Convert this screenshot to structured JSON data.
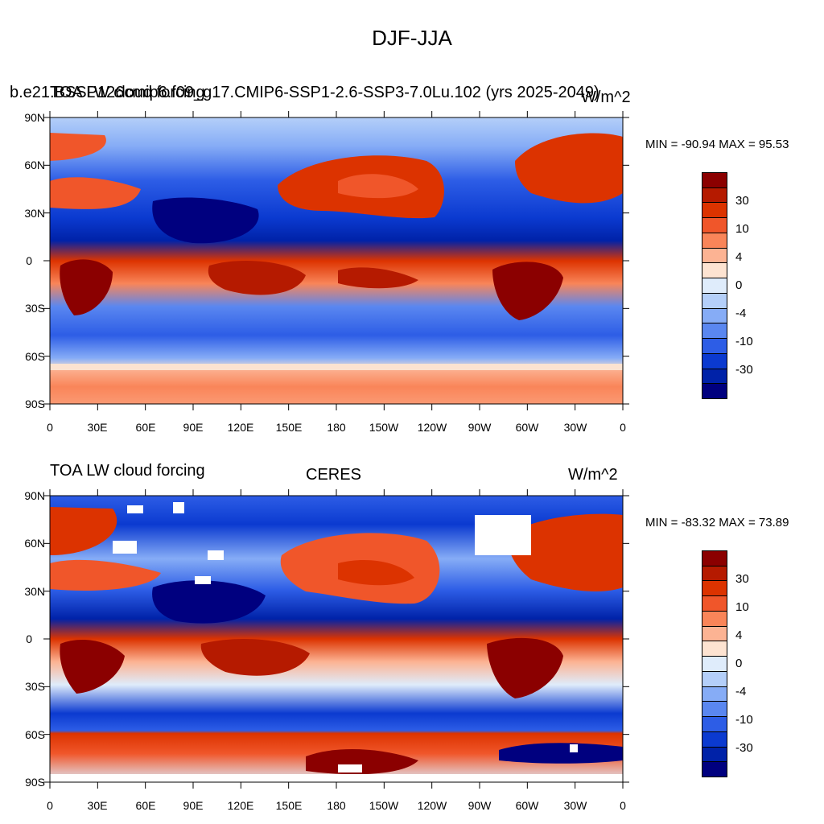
{
  "figure": {
    "title": "DJF-JJA"
  },
  "panels": [
    {
      "left_title": "b.e21.BSSP126cmip6.f09_g17.CMIP6-SSP1-2.6-SSP3-7.0Lu.102 (yrs 2025-2049)",
      "overlay_title": "TOA LW cloud forcing",
      "units": "W/m^2",
      "stats": "MIN = -90.94 MAX =  95.53"
    },
    {
      "left_title": "TOA LW cloud forcing",
      "center_title": "CERES",
      "units": "W/m^2",
      "stats": "MIN = -83.32 MAX =  73.89"
    }
  ],
  "axes": {
    "lat_labels": [
      "90N",
      "60N",
      "30N",
      "0",
      "30S",
      "60S",
      "90S"
    ],
    "lon_labels": [
      "0",
      "30E",
      "60E",
      "90E",
      "120E",
      "150E",
      "180",
      "150W",
      "120W",
      "90W",
      "60W",
      "30W",
      "0"
    ]
  },
  "colorbar": {
    "labels": [
      "30",
      "10",
      "4",
      "0",
      "-4",
      "-10",
      "-30"
    ],
    "colors": [
      "#8b0000",
      "#b51a00",
      "#dc3300",
      "#f0562a",
      "#f98559",
      "#fcb393",
      "#fde3d1",
      "#dfecfb",
      "#b4cff9",
      "#86acf6",
      "#5a87f0",
      "#2d5de6",
      "#0b3ad0",
      "#0022a8",
      "#00007f"
    ]
  },
  "chart_data": {
    "type": "heatmap",
    "title": "DJF-JJA",
    "xlabel": "",
    "ylabel": "",
    "x_range": [
      "0",
      "0"
    ],
    "y_range": [
      "90S",
      "90N"
    ],
    "maps": [
      {
        "name": "b.e21.BSSP126cmip6.f09_g17.CMIP6-SSP1-2.6-SSP3-7.0Lu.102 (yrs 2025-2049)",
        "min": -90.94,
        "max": 95.53
      },
      {
        "name": "CERES",
        "min": -83.32,
        "max": 73.89
      }
    ],
    "contour_levels": [
      -30,
      -20,
      -10,
      -6,
      -4,
      -2,
      0,
      2,
      4,
      6,
      10,
      20,
      30
    ]
  }
}
